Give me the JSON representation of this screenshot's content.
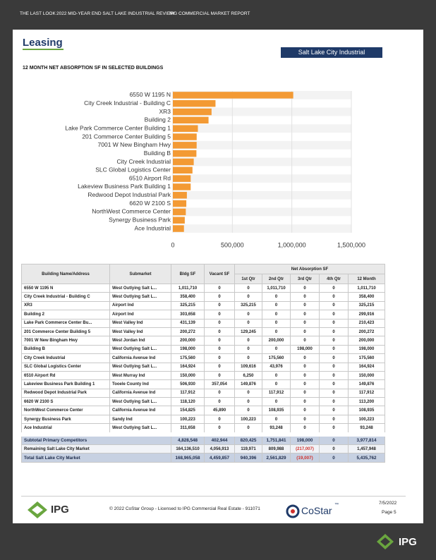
{
  "header": {
    "texts": [
      "THE LAST LOOK",
      "2022 MID-YEAR END SALT LAKE INDUSTRIAL REVIEW",
      "IPG COMMERCIAL MARKET REPORT"
    ]
  },
  "section": {
    "title": "Leasing",
    "badge": "Salt Lake City Industrial"
  },
  "chart_data": {
    "type": "bar",
    "orientation": "horizontal",
    "title": "12 MONTH NET ABSORPTION SF IN SELECTED BUILDINGS",
    "categories": [
      "6550 W 1195 N",
      "City Creek Industrial - Building C",
      "XR3",
      "Building 2",
      "Lake Park Commerce Center Building 1",
      "201 Commerce Center Building 5",
      "7001 W New Bingham Hwy",
      "Building B",
      "City Creek Industrial",
      "SLC Global Logistics Center",
      "6510 Airport Rd",
      "Lakeview Business Park Building 1",
      "Redwood Depot Industrial Park",
      "6620 W 2100 S",
      "NorthWest Commerce Center",
      "Synergy Business Park",
      "Ace Industrial"
    ],
    "values": [
      1011710,
      358400,
      325215,
      299916,
      210423,
      200272,
      200000,
      198000,
      175560,
      164924,
      150000,
      149876,
      117912,
      113200,
      108935,
      100223,
      93248
    ],
    "color": "#f39a34",
    "xlim": [
      0,
      1500000
    ],
    "xticks": [
      0,
      {
        "value": 500000,
        "label": "500,000"
      },
      {
        "value": 1000000,
        "label": "1,000,000"
      },
      {
        "value": 1500000,
        "label": "1,500,000"
      }
    ]
  },
  "table": {
    "columns": [
      "Building Name/Address",
      "Submarket",
      "Bldg SF",
      "Vacant SF"
    ],
    "group_header": "Net Absorption SF",
    "subcolumns": [
      "1st Qtr",
      "2nd Qtr",
      "3rd Qtr",
      "4th Qtr",
      "12 Month"
    ],
    "rows": [
      [
        "6550 W 1195 N",
        "West Outlying Salt L...",
        "1,011,710",
        "0",
        "0",
        "1,011,710",
        "0",
        "0",
        "1,011,710"
      ],
      [
        "City Creek Industrial - Building C",
        "West Outlying Salt L...",
        "358,400",
        "0",
        "0",
        "0",
        "0",
        "0",
        "358,400"
      ],
      [
        "XR3",
        "Airport Ind",
        "325,215",
        "0",
        "325,215",
        "0",
        "0",
        "0",
        "325,215"
      ],
      [
        "Building 2",
        "Airport Ind",
        "303,658",
        "0",
        "0",
        "0",
        "0",
        "0",
        "299,916"
      ],
      [
        "Lake Park Commerce Center Bu...",
        "West Valley Ind",
        "431,139",
        "0",
        "0",
        "0",
        "0",
        "0",
        "210,423"
      ],
      [
        "201 Commerce Center Building 5",
        "West Valley Ind",
        "200,272",
        "0",
        "129,245",
        "0",
        "0",
        "0",
        "200,272"
      ],
      [
        "7001 W New Bingham Hwy",
        "West Jordan Ind",
        "200,000",
        "0",
        "0",
        "200,000",
        "0",
        "0",
        "200,000"
      ],
      [
        "Building B",
        "West Outlying Salt L...",
        "198,000",
        "0",
        "0",
        "0",
        "198,000",
        "0",
        "198,000"
      ],
      [
        "City Creek Industrial",
        "California Avenue Ind",
        "175,560",
        "0",
        "0",
        "175,560",
        "0",
        "0",
        "175,560"
      ],
      [
        "SLC Global Logistics Center",
        "West Outlying Salt L...",
        "164,924",
        "0",
        "109,616",
        "43,976",
        "0",
        "0",
        "164,924"
      ],
      [
        "6510 Airport Rd",
        "West Murray Ind",
        "150,000",
        "0",
        "6,250",
        "0",
        "0",
        "0",
        "150,000"
      ],
      [
        "Lakeview Business Park Building 1",
        "Tooele County Ind",
        "506,930",
        "357,054",
        "149,876",
        "0",
        "0",
        "0",
        "149,876"
      ],
      [
        "Redwood Depot Industrial Park",
        "California Avenue Ind",
        "117,912",
        "0",
        "0",
        "117,912",
        "0",
        "0",
        "117,912"
      ],
      [
        "6620 W 2100 S",
        "West Outlying Salt L...",
        "118,120",
        "0",
        "0",
        "0",
        "0",
        "0",
        "113,200"
      ],
      [
        "NorthWest Commerce Center",
        "California Avenue Ind",
        "154,825",
        "45,890",
        "0",
        "108,935",
        "0",
        "0",
        "108,935"
      ],
      [
        "Synergy Business Park",
        "Sandy Ind",
        "100,223",
        "0",
        "100,223",
        "0",
        "0",
        "0",
        "100,223"
      ],
      [
        "Ace Industrial",
        "West Outlying Salt L...",
        "311,658",
        "0",
        "0",
        "93,248",
        "0",
        "0",
        "93,248"
      ]
    ],
    "summary_rows": [
      [
        "Subtotal Primary Competitors",
        "4,828,548",
        "402,944",
        "820,425",
        "1,751,841",
        "198,000",
        "0",
        "3,977,814"
      ],
      [
        "Remaining Salt Lake City Market",
        "164,136,510",
        "4,056,913",
        "119,971",
        "809,988",
        "(217,007)",
        "0",
        "1,457,948"
      ],
      [
        "Total Salt Lake City Market",
        "168,965,058",
        "4,459,857",
        "940,396",
        "2,561,829",
        "(19,007)",
        "0",
        "5,435,762"
      ]
    ]
  },
  "footer": {
    "logo": "IPG",
    "copyright": "© 2022 CoStar Group - Licensed to IPG Commercial Real Estate - 911071",
    "costar": "CoStar",
    "tm": "™",
    "date": "7/5/2022",
    "page": "Page 5",
    "corner_logo": "IPG"
  }
}
